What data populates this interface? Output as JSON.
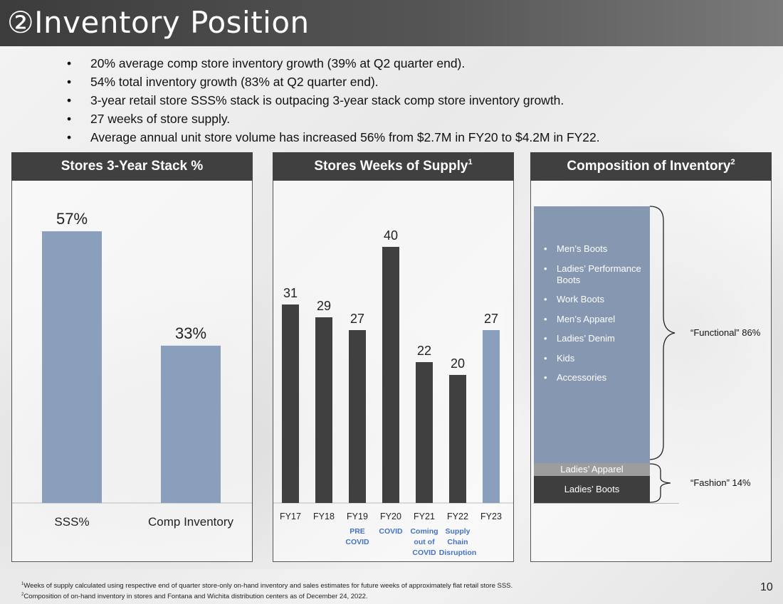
{
  "slide": {
    "title": "②Inventory Position",
    "page_number": "10"
  },
  "bullets": [
    "20% average comp store inventory growth (39% at Q2 quarter end).",
    "54% total inventory growth (83% at Q2 quarter end).",
    "3-year retail store SSS% stack is outpacing 3-year stack comp store inventory growth.",
    "27 weeks of store supply.",
    "Average annual unit store volume has increased 56% from $2.7M in FY20 to $4.2M in FY22."
  ],
  "panels": {
    "stack_title": "Stores 3-Year Stack %",
    "wos_title": "Stores Weeks of Supply",
    "wos_sup": "1",
    "comp_title": "Composition of Inventory",
    "comp_sup": "2"
  },
  "colors": {
    "bar_blue": "#8a9fbb",
    "bar_dark": "#404040",
    "annotation_blue": "#4472c4"
  },
  "chart_data": [
    {
      "type": "bar",
      "title": "Stores 3-Year Stack %",
      "categories": [
        "SSS%",
        "Comp Inventory"
      ],
      "values": [
        57,
        33
      ],
      "data_labels": [
        "57%",
        "33%"
      ],
      "ylim": [
        0,
        60
      ]
    },
    {
      "type": "bar",
      "title": "Stores Weeks of Supply",
      "categories": [
        "FY17",
        "FY18",
        "FY19",
        "FY20",
        "FY21",
        "FY22",
        "FY23"
      ],
      "values": [
        31,
        29,
        27,
        40,
        22,
        20,
        27
      ],
      "data_labels": [
        "31",
        "29",
        "27",
        "40",
        "22",
        "20",
        "27"
      ],
      "highlight_index": 6,
      "annotations": [
        {
          "category": "FY19",
          "lines": [
            "PRE",
            "COVID"
          ]
        },
        {
          "category": "FY20",
          "lines": [
            "COVID"
          ]
        },
        {
          "category": "FY21",
          "lines": [
            "Coming",
            "out of",
            "COVID"
          ]
        },
        {
          "category": "FY22",
          "lines": [
            "Supply",
            "Chain",
            "Disruption"
          ]
        }
      ],
      "ylim": [
        0,
        42
      ]
    },
    {
      "type": "stacked-bar",
      "title": "Composition of Inventory",
      "segments": [
        {
          "name": "Functional",
          "share": 86,
          "items": [
            "Men’s Boots",
            "Ladies’ Performance Boots",
            "Work Boots",
            "Men’s Apparel",
            "Ladies’ Denim",
            "Kids",
            "Accessories"
          ]
        },
        {
          "name": "Fashion",
          "share": 14,
          "items": [
            "Ladies’ Apparel",
            "Ladies’ Boots"
          ]
        }
      ],
      "brace_labels": [
        "“Functional” 86%",
        "“Fashion” 14%"
      ]
    }
  ],
  "footnotes": [
    {
      "sup": "1",
      "text": "Weeks of supply calculated using respective end of quarter store-only on-hand inventory and sales estimates for future weeks of approximately flat retail store SSS."
    },
    {
      "sup": "2",
      "text": "Composition of on-hand inventory in stores and Fontana and Wichita distribution centers as of December 24, 2022."
    }
  ]
}
